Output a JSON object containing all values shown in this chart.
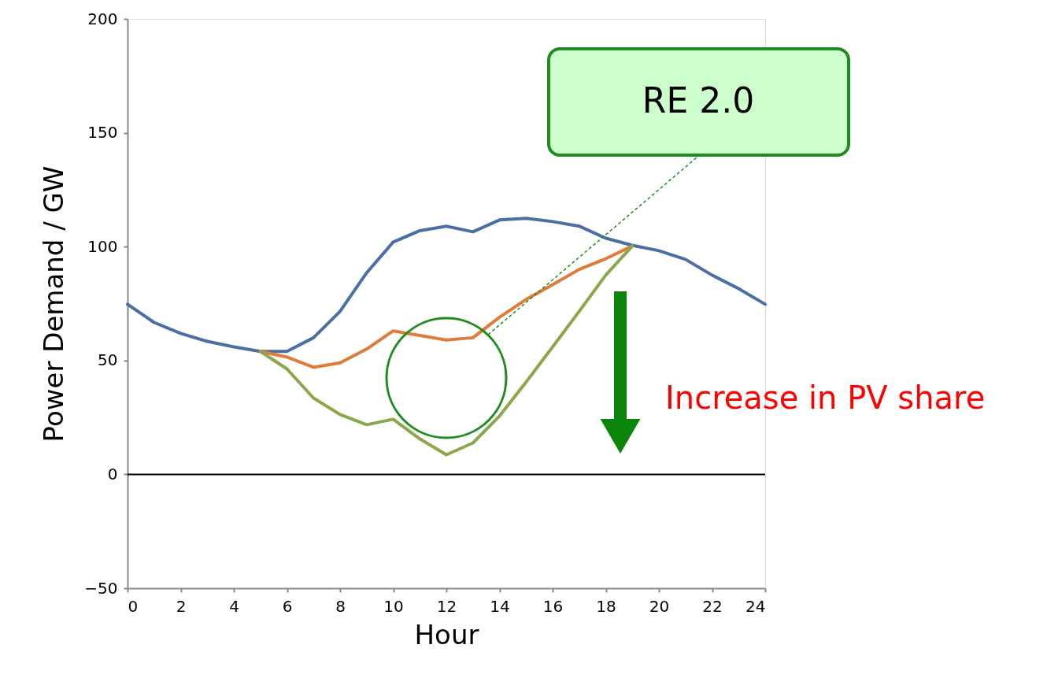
{
  "chart_data": {
    "type": "line",
    "xlabel": "Hour",
    "ylabel": "Power Demand / GW",
    "xlim": [
      0,
      24
    ],
    "xticks": [
      0,
      2,
      4,
      6,
      8,
      10,
      12,
      14,
      16,
      18,
      20,
      22,
      24
    ],
    "ylim": [
      -50,
      200
    ],
    "yticks": [
      -50,
      0,
      50,
      100,
      150,
      200
    ],
    "grid": false,
    "legend": false,
    "marker": "none",
    "line_style": "solid",
    "ref_lines": [
      {
        "axis": "y",
        "value": 0,
        "color": "#000000"
      }
    ],
    "annotations": [
      "RE 2.0",
      "Increase in PV share"
    ],
    "series": [
      {
        "color": "#4a6fa5",
        "x": [
          0,
          1,
          2,
          3,
          4,
          5,
          6,
          7,
          8,
          9,
          10,
          11,
          12,
          13,
          14,
          15,
          16,
          17,
          18,
          19,
          20,
          21,
          22,
          23,
          24
        ],
        "values": [
          74.7,
          66.7,
          61.9,
          58.4,
          56,
          54,
          54,
          60,
          71.6,
          88.5,
          102,
          107,
          109,
          106.5,
          111.7,
          112.4,
          111,
          109,
          103.7,
          100.6,
          98.2,
          94.4,
          87.5,
          81.6,
          74.7
        ]
      },
      {
        "color": "#e07b39",
        "x": [
          5,
          6,
          7,
          8,
          9,
          10,
          11,
          12,
          13,
          14,
          15,
          16,
          17,
          18,
          19
        ],
        "values": [
          54,
          51.5,
          47,
          49,
          55,
          63,
          61,
          59,
          60,
          69,
          76.8,
          83.3,
          90,
          94.7,
          100.3
        ]
      },
      {
        "color": "#8aa74a",
        "x": [
          5,
          6,
          7,
          8,
          9,
          10,
          11,
          12,
          13,
          14,
          15,
          16,
          17,
          18,
          19
        ],
        "values": [
          54,
          46.3,
          33.5,
          26.3,
          21.8,
          24.2,
          15.6,
          8.6,
          13.8,
          25.6,
          40.5,
          56,
          71.6,
          87.5,
          100.3
        ]
      }
    ]
  }
}
